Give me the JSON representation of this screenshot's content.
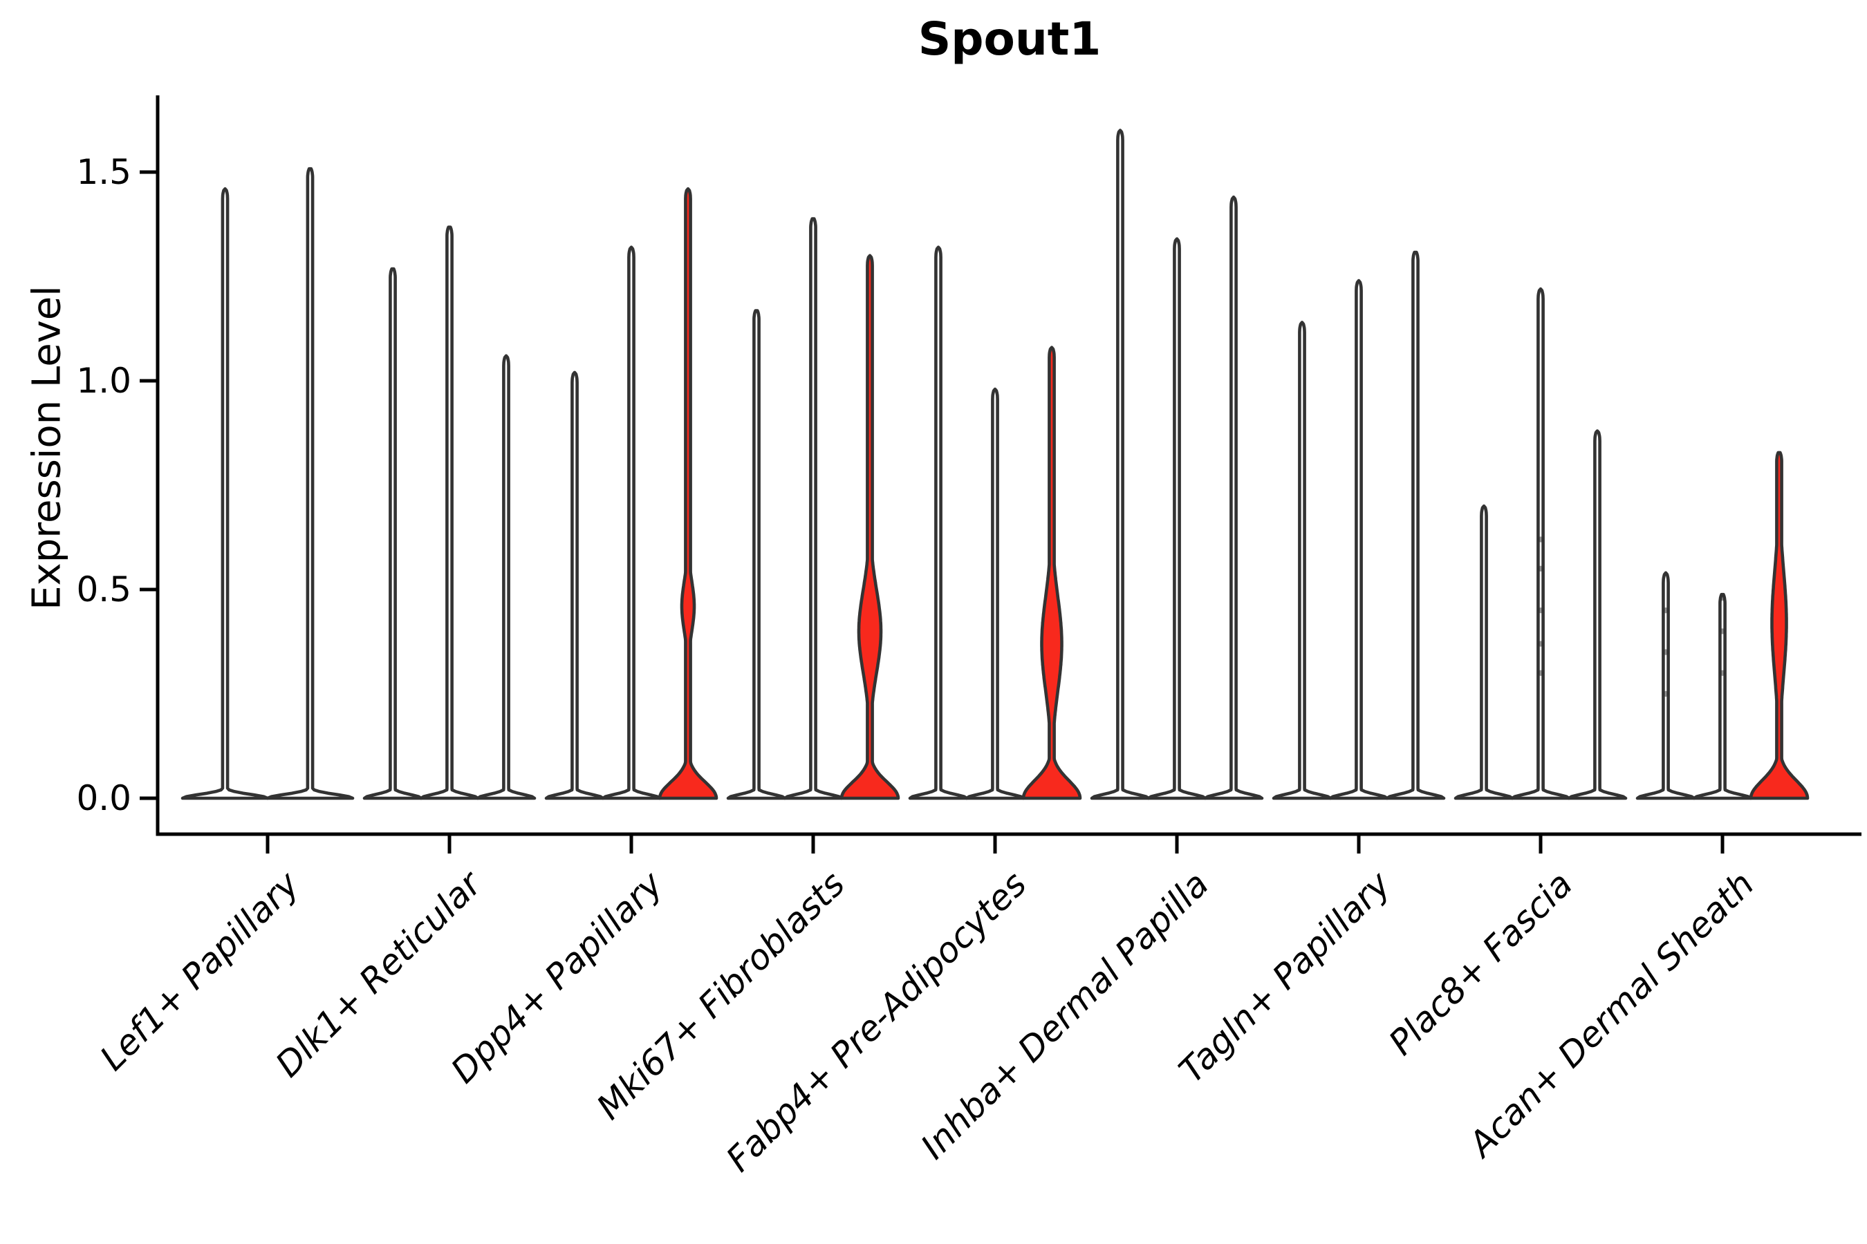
{
  "title": "Spout1",
  "ylabel": "Expression Level",
  "colors": {
    "violin_fill_red": "#f8291d",
    "violin_outline": "#333333",
    "axis": "#000000",
    "background": "#ffffff"
  },
  "chart_data": {
    "type": "violin",
    "title": "Spout1",
    "xlabel": "",
    "ylabel": "Expression Level",
    "ylim": [
      0,
      1.68
    ],
    "yticks": [
      0,
      0.5,
      1.0,
      1.5
    ],
    "ytick_labels": [
      "0.0",
      "0.5",
      "1.0",
      "1.5"
    ],
    "legend": "none",
    "grid": false,
    "x_tick_angle": 45,
    "categories": [
      "Lef1+ Papillary",
      "Dlk1+ Reticular",
      "Dpp4+ Papillary",
      "Mki67+ Fibroblasts",
      "Fabp4+ Pre-Adipocytes",
      "Inhba+ Dermal Papilla",
      "Tagln+ Papillary",
      "Plac8+ Fascia",
      "Acan+ Dermal Sheath"
    ],
    "groups": [
      {
        "label": "Lef1+ Papillary",
        "violins": [
          {
            "max": 1.46,
            "red": false
          },
          {
            "max": 1.51,
            "red": false
          }
        ]
      },
      {
        "label": "Dlk1+ Reticular",
        "violins": [
          {
            "max": 1.27,
            "red": false
          },
          {
            "max": 1.37,
            "red": false
          },
          {
            "max": 1.06,
            "red": false
          }
        ]
      },
      {
        "label": "Dpp4+ Papillary",
        "violins": [
          {
            "max": 1.02,
            "red": false
          },
          {
            "max": 1.32,
            "red": false
          },
          {
            "max": 1.46,
            "red": true,
            "flare": 0.055,
            "bulge": {
              "peak": 0.46,
              "sigma": 0.085,
              "halfwidth": 9
            }
          }
        ]
      },
      {
        "label": "Mki67+ Fibroblasts",
        "violins": [
          {
            "max": 1.17,
            "red": false
          },
          {
            "max": 1.39,
            "red": false
          },
          {
            "max": 1.3,
            "red": true,
            "flare": 0.055,
            "bulge": {
              "peak": 0.4,
              "sigma": 0.14,
              "halfwidth": 16
            }
          }
        ]
      },
      {
        "label": "Fabp4+ Pre-Adipocytes",
        "violins": [
          {
            "max": 1.32,
            "red": false
          },
          {
            "max": 0.98,
            "red": false
          },
          {
            "max": 1.08,
            "red": true,
            "flare": 0.06,
            "bulge": {
              "peak": 0.37,
              "sigma": 0.16,
              "halfwidth": 14.5
            }
          }
        ]
      },
      {
        "label": "Inhba+ Dermal Papilla",
        "violins": [
          {
            "max": 1.6,
            "red": false
          },
          {
            "max": 1.34,
            "red": false
          },
          {
            "max": 1.44,
            "red": false
          }
        ]
      },
      {
        "label": "Tagln+ Papillary",
        "violins": [
          {
            "max": 1.14,
            "red": false
          },
          {
            "max": 1.24,
            "red": false
          },
          {
            "max": 1.31,
            "red": false
          }
        ]
      },
      {
        "label": "Plac8+ Fascia",
        "violins": [
          {
            "max": 0.7,
            "red": false
          },
          {
            "max": 1.22,
            "red": false,
            "points": [
              0.62,
              0.55,
              0.45,
              0.37,
              0.3
            ]
          },
          {
            "max": 0.88,
            "red": false
          }
        ]
      },
      {
        "label": "Acan+ Dermal Sheath",
        "violins": [
          {
            "max": 0.54,
            "red": false,
            "points": [
              0.45,
              0.35,
              0.25
            ]
          },
          {
            "max": 0.49,
            "red": false,
            "points": [
              0.48,
              0.4,
              0.3
            ]
          },
          {
            "max": 0.83,
            "red": true,
            "flare": 0.06,
            "bulge": {
              "peak": 0.42,
              "sigma": 0.18,
              "halfwidth": 10.5
            }
          }
        ]
      }
    ]
  }
}
